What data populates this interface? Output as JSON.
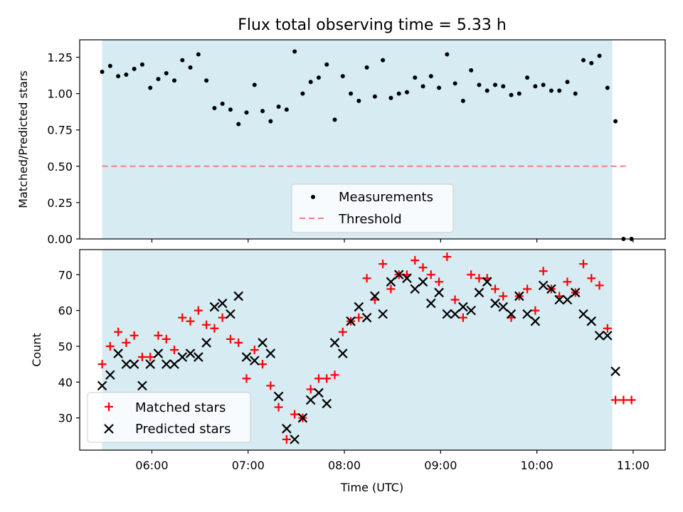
{
  "chart_data": [
    {
      "type": "scatter",
      "title": "Flux total observing time = 5.33 h",
      "xlabel": "",
      "ylabel": "Matched/Predicted stars",
      "ylim": [
        0,
        1.37
      ],
      "yticks": [
        "0.00",
        "0.25",
        "0.50",
        "0.75",
        "1.00",
        "1.25"
      ],
      "shade_color": "#add8e6",
      "threshold": 0.5,
      "threshold_color": "#f08080",
      "legend": [
        "Measurements",
        "Threshold"
      ],
      "legend_position": "lower-center",
      "series": [
        {
          "name": "Measurements",
          "color": "#000000",
          "marker": "dot",
          "points": [
            [
              "05:29",
              1.15
            ],
            [
              "05:34",
              1.19
            ],
            [
              "05:39",
              1.12
            ],
            [
              "05:44",
              1.13
            ],
            [
              "05:49",
              1.17
            ],
            [
              "05:54",
              1.2
            ],
            [
              "05:59",
              1.04
            ],
            [
              "06:04",
              1.1
            ],
            [
              "06:09",
              1.14
            ],
            [
              "06:14",
              1.09
            ],
            [
              "06:19",
              1.23
            ],
            [
              "06:24",
              1.18
            ],
            [
              "06:29",
              1.27
            ],
            [
              "06:34",
              1.09
            ],
            [
              "06:39",
              0.9
            ],
            [
              "06:44",
              0.93
            ],
            [
              "06:49",
              0.89
            ],
            [
              "06:54",
              0.79
            ],
            [
              "06:59",
              0.87
            ],
            [
              "07:04",
              1.06
            ],
            [
              "07:09",
              0.88
            ],
            [
              "07:14",
              0.81
            ],
            [
              "07:19",
              0.91
            ],
            [
              "07:24",
              0.89
            ],
            [
              "07:29",
              1.29
            ],
            [
              "07:34",
              1.0
            ],
            [
              "07:39",
              1.08
            ],
            [
              "07:44",
              1.11
            ],
            [
              "07:49",
              1.2
            ],
            [
              "07:54",
              0.82
            ],
            [
              "07:59",
              1.12
            ],
            [
              "08:04",
              1.0
            ],
            [
              "08:09",
              0.95
            ],
            [
              "08:14",
              1.18
            ],
            [
              "08:19",
              0.98
            ],
            [
              "08:24",
              1.23
            ],
            [
              "08:29",
              0.97
            ],
            [
              "08:34",
              1.0
            ],
            [
              "08:39",
              1.01
            ],
            [
              "08:44",
              1.11
            ],
            [
              "08:49",
              1.05
            ],
            [
              "08:54",
              1.12
            ],
            [
              "08:59",
              1.04
            ],
            [
              "09:04",
              1.27
            ],
            [
              "09:09",
              1.07
            ],
            [
              "09:14",
              0.95
            ],
            [
              "09:19",
              1.16
            ],
            [
              "09:24",
              1.06
            ],
            [
              "09:29",
              1.02
            ],
            [
              "09:34",
              1.06
            ],
            [
              "09:39",
              1.05
            ],
            [
              "09:44",
              0.99
            ],
            [
              "09:49",
              1.0
            ],
            [
              "09:54",
              1.11
            ],
            [
              "09:59",
              1.05
            ],
            [
              "10:04",
              1.06
            ],
            [
              "10:09",
              1.02
            ],
            [
              "10:14",
              1.02
            ],
            [
              "10:19",
              1.08
            ],
            [
              "10:24",
              1.0
            ],
            [
              "10:29",
              1.23
            ],
            [
              "10:34",
              1.21
            ],
            [
              "10:39",
              1.26
            ],
            [
              "10:44",
              1.04
            ],
            [
              "10:49",
              0.81
            ],
            [
              "10:54",
              0.0
            ],
            [
              "10:59",
              0.0
            ]
          ]
        }
      ]
    },
    {
      "type": "scatter",
      "title": "",
      "xlabel": "Time (UTC)",
      "ylabel": "Count",
      "ylim": [
        21,
        77
      ],
      "yticks": [
        "30",
        "40",
        "50",
        "60",
        "70"
      ],
      "xticks": [
        "06:00",
        "07:00",
        "08:00",
        "09:00",
        "10:00",
        "11:00"
      ],
      "xlim": [
        "05:15",
        "11:20"
      ],
      "shade_range": [
        "05:29",
        "10:47"
      ],
      "legend": [
        "Matched stars",
        "Predicted stars"
      ],
      "legend_position": "lower-left",
      "series": [
        {
          "name": "Matched stars",
          "color": "#ff0000",
          "marker": "plus",
          "points": [
            [
              "05:29",
              45
            ],
            [
              "05:34",
              50
            ],
            [
              "05:39",
              54
            ],
            [
              "05:44",
              51
            ],
            [
              "05:49",
              53
            ],
            [
              "05:54",
              47
            ],
            [
              "05:59",
              47
            ],
            [
              "06:04",
              53
            ],
            [
              "06:09",
              52
            ],
            [
              "06:14",
              49
            ],
            [
              "06:19",
              58
            ],
            [
              "06:24",
              57
            ],
            [
              "06:29",
              60
            ],
            [
              "06:34",
              56
            ],
            [
              "06:39",
              55
            ],
            [
              "06:44",
              58
            ],
            [
              "06:49",
              52
            ],
            [
              "06:54",
              51
            ],
            [
              "06:59",
              41
            ],
            [
              "07:04",
              49
            ],
            [
              "07:09",
              45
            ],
            [
              "07:14",
              39
            ],
            [
              "07:19",
              33
            ],
            [
              "07:24",
              24
            ],
            [
              "07:29",
              31
            ],
            [
              "07:34",
              30
            ],
            [
              "07:39",
              38
            ],
            [
              "07:44",
              41
            ],
            [
              "07:49",
              41
            ],
            [
              "07:54",
              42
            ],
            [
              "07:59",
              54
            ],
            [
              "08:04",
              57
            ],
            [
              "08:09",
              58
            ],
            [
              "08:14",
              69
            ],
            [
              "08:19",
              63
            ],
            [
              "08:24",
              73
            ],
            [
              "08:29",
              66
            ],
            [
              "08:34",
              70
            ],
            [
              "08:39",
              70
            ],
            [
              "08:44",
              74
            ],
            [
              "08:49",
              72
            ],
            [
              "08:54",
              70
            ],
            [
              "08:59",
              68
            ],
            [
              "09:04",
              75
            ],
            [
              "09:09",
              63
            ],
            [
              "09:14",
              58
            ],
            [
              "09:19",
              70
            ],
            [
              "09:24",
              69
            ],
            [
              "09:29",
              69
            ],
            [
              "09:34",
              66
            ],
            [
              "09:39",
              64
            ],
            [
              "09:44",
              58
            ],
            [
              "09:49",
              64
            ],
            [
              "09:54",
              66
            ],
            [
              "09:59",
              60
            ],
            [
              "10:04",
              71
            ],
            [
              "10:09",
              66
            ],
            [
              "10:14",
              64
            ],
            [
              "10:19",
              68
            ],
            [
              "10:24",
              65
            ],
            [
              "10:29",
              73
            ],
            [
              "10:34",
              69
            ],
            [
              "10:39",
              67
            ],
            [
              "10:44",
              55
            ],
            [
              "10:49",
              35
            ],
            [
              "10:54",
              35
            ],
            [
              "10:59",
              35
            ]
          ]
        },
        {
          "name": "Predicted stars",
          "color": "#000000",
          "marker": "x",
          "points": [
            [
              "05:29",
              39
            ],
            [
              "05:34",
              42
            ],
            [
              "05:39",
              48
            ],
            [
              "05:44",
              45
            ],
            [
              "05:49",
              45
            ],
            [
              "05:54",
              39
            ],
            [
              "05:59",
              45
            ],
            [
              "06:04",
              48
            ],
            [
              "06:09",
              45
            ],
            [
              "06:14",
              45
            ],
            [
              "06:19",
              47
            ],
            [
              "06:24",
              48
            ],
            [
              "06:29",
              47
            ],
            [
              "06:34",
              51
            ],
            [
              "06:39",
              61
            ],
            [
              "06:44",
              62
            ],
            [
              "06:49",
              59
            ],
            [
              "06:54",
              64
            ],
            [
              "06:59",
              47
            ],
            [
              "07:04",
              46
            ],
            [
              "07:09",
              51
            ],
            [
              "07:14",
              48
            ],
            [
              "07:19",
              36
            ],
            [
              "07:24",
              27
            ],
            [
              "07:29",
              24
            ],
            [
              "07:34",
              30
            ],
            [
              "07:39",
              35
            ],
            [
              "07:44",
              37
            ],
            [
              "07:49",
              34
            ],
            [
              "07:54",
              51
            ],
            [
              "07:59",
              48
            ],
            [
              "08:04",
              57
            ],
            [
              "08:09",
              61
            ],
            [
              "08:14",
              58
            ],
            [
              "08:19",
              64
            ],
            [
              "08:24",
              59
            ],
            [
              "08:29",
              68
            ],
            [
              "08:34",
              70
            ],
            [
              "08:39",
              69
            ],
            [
              "08:44",
              66
            ],
            [
              "08:49",
              68
            ],
            [
              "08:54",
              62
            ],
            [
              "08:59",
              65
            ],
            [
              "09:04",
              59
            ],
            [
              "09:09",
              59
            ],
            [
              "09:14",
              61
            ],
            [
              "09:19",
              60
            ],
            [
              "09:24",
              65
            ],
            [
              "09:29",
              68
            ],
            [
              "09:34",
              62
            ],
            [
              "09:39",
              61
            ],
            [
              "09:44",
              59
            ],
            [
              "09:49",
              64
            ],
            [
              "09:54",
              59
            ],
            [
              "09:59",
              57
            ],
            [
              "10:04",
              67
            ],
            [
              "10:09",
              66
            ],
            [
              "10:14",
              63
            ],
            [
              "10:19",
              63
            ],
            [
              "10:24",
              65
            ],
            [
              "10:29",
              59
            ],
            [
              "10:34",
              57
            ],
            [
              "10:39",
              53
            ],
            [
              "10:44",
              53
            ],
            [
              "10:49",
              43
            ]
          ]
        }
      ]
    }
  ]
}
